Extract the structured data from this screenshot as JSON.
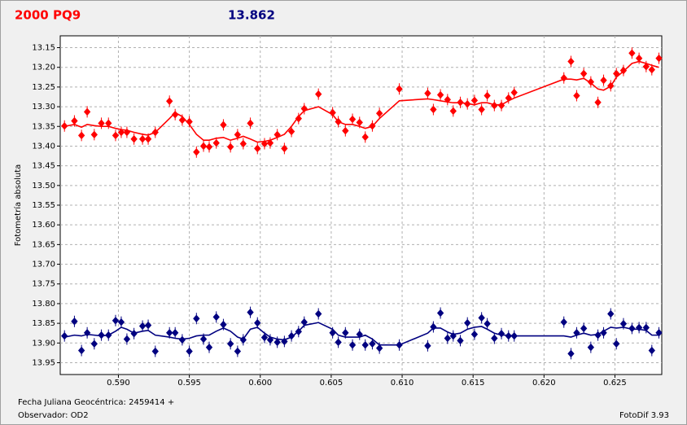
{
  "chart_data": {
    "type": "scatter",
    "title": "2000 PQ9",
    "title_color": "#ff0000",
    "subtitle": "13.862",
    "subtitle_color": "#000080",
    "ylabel": "Fotometría absoluta",
    "xlabel": "Fecha Juliana Geocéntrica: 2459414 +",
    "footnotes": [
      "Observador: OD2",
      "FotoDif 3.93"
    ],
    "xlim": [
      0.5859,
      0.6283
    ],
    "ylim": [
      13.12,
      13.98
    ],
    "y_inverted": true,
    "grid": true,
    "xticks": [
      {
        "value": 0.59,
        "label": "0.590"
      },
      0.595,
      {
        "value": 0.6,
        "label": "0.600"
      },
      0.605,
      {
        "value": 0.61,
        "label": "0.610"
      },
      0.615,
      {
        "value": 0.62,
        "label": "0.620"
      },
      0.625
    ],
    "yticks": [
      13.15,
      {
        "value": 13.2,
        "label": "13.20"
      },
      13.25,
      {
        "value": 13.3,
        "label": "13.30"
      },
      13.35,
      {
        "value": 13.4,
        "label": "13.40"
      },
      13.45,
      {
        "value": 13.5,
        "label": "13.50"
      },
      13.55,
      {
        "value": 13.6,
        "label": "13.60"
      },
      13.65,
      {
        "value": 13.7,
        "label": "13.70"
      },
      13.75,
      {
        "value": 13.8,
        "label": "13.80"
      },
      13.85,
      {
        "value": 13.9,
        "label": "13.90"
      },
      13.95
    ],
    "x": [
      0.5862,
      0.5869,
      0.5874,
      0.5878,
      0.5883,
      0.5888,
      0.5893,
      0.5898,
      0.5902,
      0.5906,
      0.5911,
      0.5917,
      0.5921,
      0.5926,
      0.5936,
      0.594,
      0.5945,
      0.595,
      0.5955,
      0.596,
      0.5964,
      0.5969,
      0.5974,
      0.5979,
      0.5984,
      0.5988,
      0.5993,
      0.5998,
      0.6003,
      0.6007,
      0.6012,
      0.6017,
      0.6022,
      0.6027,
      0.6031,
      0.6041,
      0.6051,
      0.6055,
      0.606,
      0.6065,
      0.607,
      0.6074,
      0.6079,
      0.6084,
      0.6098,
      0.6118,
      0.6122,
      0.6127,
      0.6132,
      0.6136,
      0.6141,
      0.6146,
      0.6151,
      0.6156,
      0.616,
      0.6165,
      0.617,
      0.6175,
      0.6179,
      0.6214,
      0.6219,
      0.6223,
      0.6228,
      0.6233,
      0.6238,
      0.6242,
      0.6247,
      0.6251,
      0.6256,
      0.6262,
      0.6267,
      0.6272,
      0.6276,
      0.6281
    ],
    "series": [
      {
        "style": "points",
        "color": "#ff0000",
        "values": [
          13.349,
          13.336,
          13.373,
          13.313,
          13.371,
          13.342,
          13.342,
          13.373,
          13.365,
          13.365,
          13.382,
          13.382,
          13.382,
          13.365,
          13.286,
          13.32,
          13.334,
          13.338,
          13.415,
          13.4,
          13.402,
          13.392,
          13.346,
          13.402,
          13.371,
          13.394,
          13.342,
          13.406,
          13.394,
          13.392,
          13.371,
          13.406,
          13.363,
          13.33,
          13.305,
          13.268,
          13.315,
          13.338,
          13.361,
          13.332,
          13.34,
          13.377,
          13.349,
          13.317,
          13.255,
          13.266,
          13.307,
          13.27,
          13.282,
          13.311,
          13.289,
          13.293,
          13.284,
          13.307,
          13.272,
          13.297,
          13.297,
          13.278,
          13.264,
          13.227,
          13.185,
          13.272,
          13.216,
          13.237,
          13.289,
          13.233,
          13.247,
          13.216,
          13.208,
          13.164,
          13.177,
          13.198,
          13.206,
          13.177
        ]
      },
      {
        "style": "line",
        "color": "#ff0000",
        "values": [
          13.35,
          13.345,
          13.352,
          13.345,
          13.348,
          13.35,
          13.35,
          13.355,
          13.358,
          13.36,
          13.365,
          13.37,
          13.372,
          13.365,
          13.33,
          13.315,
          13.325,
          13.345,
          13.37,
          13.385,
          13.385,
          13.38,
          13.378,
          13.385,
          13.38,
          13.375,
          13.382,
          13.39,
          13.388,
          13.385,
          13.378,
          13.37,
          13.35,
          13.325,
          13.31,
          13.3,
          13.32,
          13.338,
          13.345,
          13.345,
          13.35,
          13.355,
          13.35,
          13.33,
          13.285,
          13.28,
          13.282,
          13.285,
          13.288,
          13.29,
          13.29,
          13.292,
          13.295,
          13.29,
          13.29,
          13.295,
          13.295,
          13.285,
          13.278,
          13.23,
          13.23,
          13.232,
          13.228,
          13.24,
          13.255,
          13.258,
          13.248,
          13.225,
          13.21,
          13.19,
          13.185,
          13.19,
          13.195,
          13.2
        ]
      },
      {
        "style": "points",
        "color": "#000080",
        "values": [
          13.882,
          13.845,
          13.919,
          13.874,
          13.902,
          13.88,
          13.88,
          13.843,
          13.847,
          13.89,
          13.876,
          13.857,
          13.855,
          13.921,
          13.874,
          13.874,
          13.892,
          13.921,
          13.838,
          13.89,
          13.911,
          13.834,
          13.853,
          13.902,
          13.921,
          13.892,
          13.822,
          13.849,
          13.886,
          13.892,
          13.898,
          13.896,
          13.882,
          13.871,
          13.847,
          13.826,
          13.874,
          13.898,
          13.874,
          13.905,
          13.878,
          13.905,
          13.902,
          13.913,
          13.905,
          13.907,
          13.859,
          13.824,
          13.888,
          13.882,
          13.894,
          13.849,
          13.878,
          13.836,
          13.851,
          13.888,
          13.876,
          13.882,
          13.882,
          13.847,
          13.927,
          13.874,
          13.863,
          13.911,
          13.88,
          13.874,
          13.826,
          13.902,
          13.851,
          13.863,
          13.861,
          13.861,
          13.919,
          13.874
        ]
      },
      {
        "style": "line",
        "color": "#000080",
        "values": [
          13.885,
          13.88,
          13.882,
          13.878,
          13.88,
          13.882,
          13.88,
          13.87,
          13.86,
          13.865,
          13.875,
          13.87,
          13.868,
          13.88,
          13.885,
          13.888,
          13.89,
          13.888,
          13.882,
          13.88,
          13.88,
          13.87,
          13.862,
          13.87,
          13.885,
          13.89,
          13.865,
          13.86,
          13.875,
          13.885,
          13.89,
          13.892,
          13.885,
          13.87,
          13.855,
          13.848,
          13.865,
          13.88,
          13.885,
          13.885,
          13.885,
          13.88,
          13.89,
          13.905,
          13.905,
          13.875,
          13.862,
          13.862,
          13.872,
          13.878,
          13.875,
          13.865,
          13.86,
          13.858,
          13.865,
          13.875,
          13.88,
          13.88,
          13.882,
          13.882,
          13.885,
          13.88,
          13.875,
          13.88,
          13.878,
          13.87,
          13.86,
          13.862,
          13.86,
          13.865,
          13.865,
          13.868,
          13.88,
          13.88
        ]
      }
    ]
  }
}
